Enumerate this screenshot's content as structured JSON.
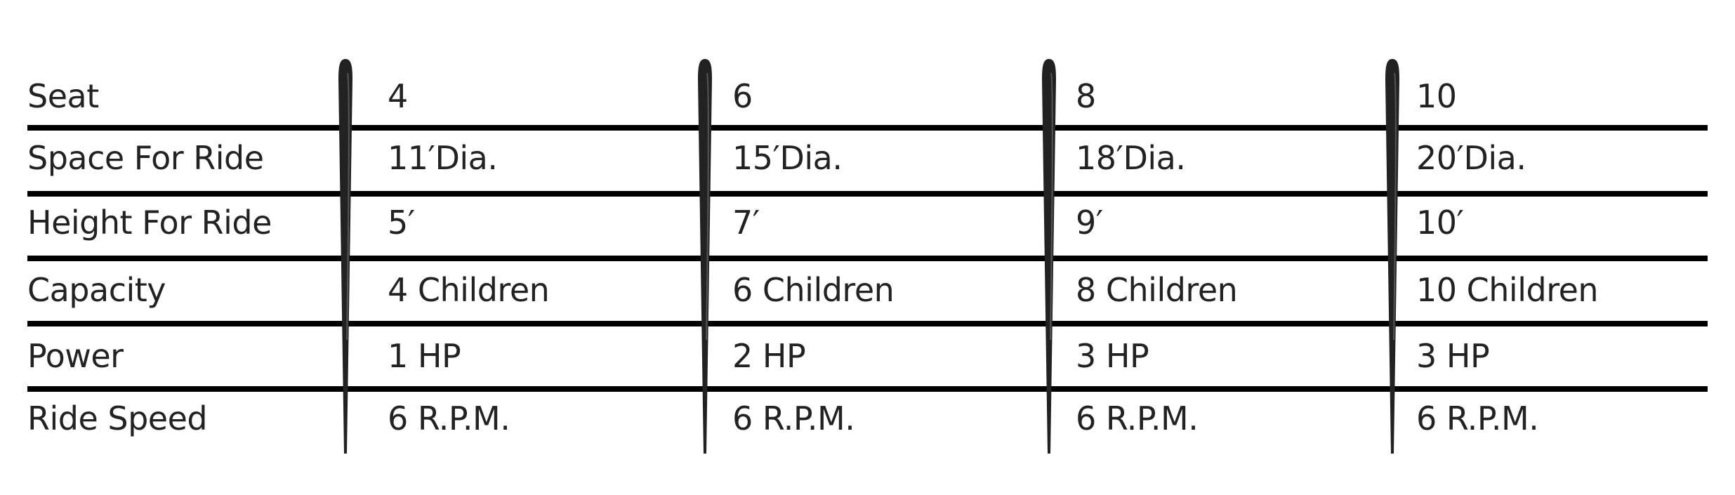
{
  "table": {
    "rows": [
      {
        "label": "Seat",
        "values": [
          "4",
          "6",
          "8",
          "10"
        ]
      },
      {
        "label": "Space For Ride",
        "values": [
          "11′Dia.",
          "15′Dia.",
          "18′Dia.",
          "20′Dia."
        ]
      },
      {
        "label": "Height For Ride",
        "values": [
          "5′",
          "7′",
          "9′",
          "10′"
        ]
      },
      {
        "label": "Capacity",
        "values": [
          "4 Children",
          "6 Children",
          "8 Children",
          "10 Children"
        ]
      },
      {
        "label": "Power",
        "values": [
          "1 HP",
          "2 HP",
          "3 HP",
          "3 HP"
        ]
      },
      {
        "label": "Ride Speed",
        "values": [
          "6 R.P.M.",
          "6 R.P.M.",
          "6 R.P.M.",
          "6 R.P.M."
        ]
      }
    ],
    "line_color": "#000000",
    "divider_icon": "needle-divider"
  }
}
